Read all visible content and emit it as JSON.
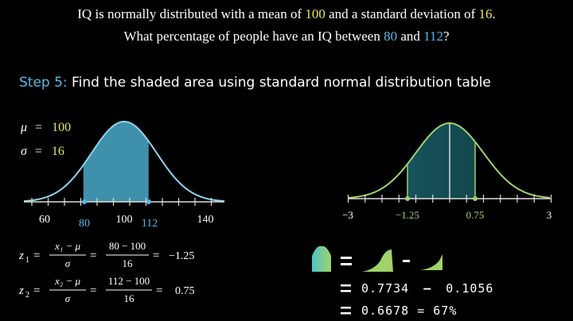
{
  "problem": {
    "line1_pre": "IQ is normally distributed with a mean of ",
    "mean": "100",
    "line1_mid": " and a standard deviation of ",
    "sd": "16",
    "line1_post": ".",
    "line2_pre": "What percentage of people have an IQ between ",
    "low": "80",
    "line2_mid": " and ",
    "high": "112",
    "line2_post": "?"
  },
  "step": {
    "label": "Step 5:",
    "text": " Find the shaded area using standard normal distribution table"
  },
  "params": {
    "mu_symbol": "μ",
    "mu_value": "100",
    "sigma_symbol": "σ",
    "sigma_value": "16",
    "equals": "="
  },
  "left_axis": {
    "ticks": [
      "60",
      "80",
      "100",
      "112",
      "140"
    ]
  },
  "right_axis": {
    "ticks": [
      "−3",
      "−1.25",
      "0.75",
      "3"
    ]
  },
  "z_formulas": {
    "z1_lhs": "z",
    "z1_sub": "1",
    "z1_num": "x₁ − μ",
    "z1_den": "σ",
    "z1_num2": "80 − 100",
    "z1_den2": "16",
    "z1_result": "−1.25",
    "z2_lhs": "z",
    "z2_sub": "2",
    "z2_num": "x₂ − μ",
    "z2_den": "σ",
    "z2_num2": "112 − 100",
    "z2_den2": "16",
    "z2_result": "0.75"
  },
  "result": {
    "line2_a": "0.7734",
    "line2_b": "0.1056",
    "line3": "0.6678 = 67%"
  },
  "colors": {
    "blue": "#58b8e6",
    "yellow": "#e5e84c",
    "green": "#9fd36a",
    "teal": "#4fc3c7"
  }
}
